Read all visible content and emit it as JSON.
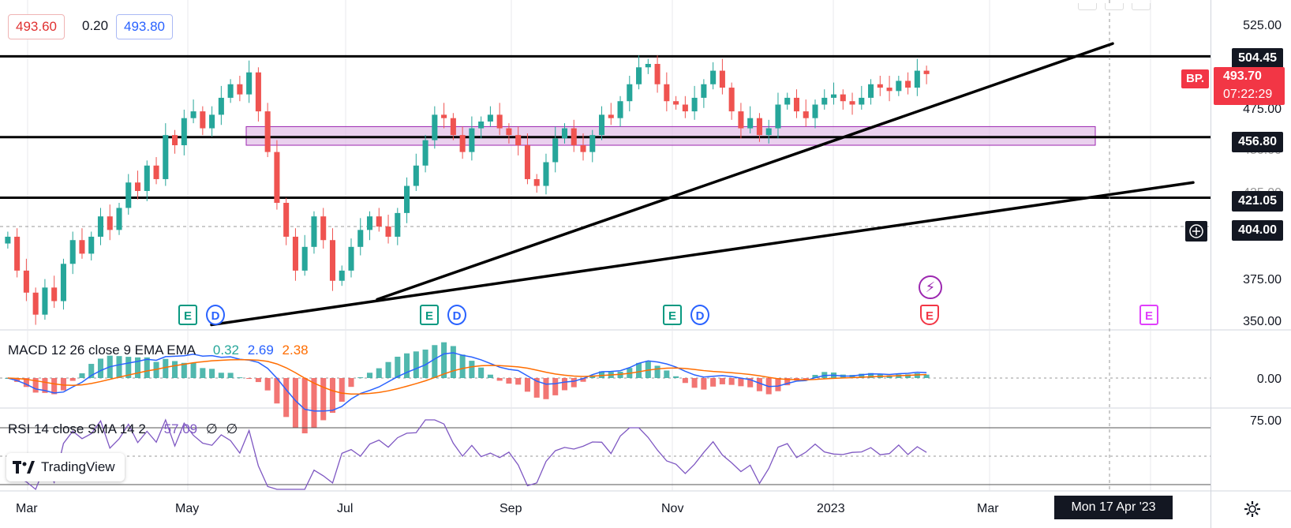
{
  "chart_data": {
    "type": "candlestick",
    "price_axis": {
      "ticks": [
        "525.00",
        "475.00",
        "450.00",
        "425.00",
        "375.00",
        "350.00"
      ],
      "ylim": [
        343,
        534
      ]
    },
    "x_axis": {
      "labels": [
        "Mar",
        "May",
        "Jul",
        "Sep",
        "Nov",
        "2023",
        "Mar"
      ]
    },
    "horizontal_levels": [
      {
        "label": "504.45",
        "value": 504.45
      },
      {
        "label": "456.80",
        "value": 456.8
      },
      {
        "label": "421.05",
        "value": 421.05
      }
    ],
    "crosshair_price": {
      "label": "404.00",
      "value": 404.0
    },
    "resistance_zone": {
      "low": 452,
      "high": 463
    },
    "close_series": [
      398,
      378,
      365,
      352,
      368,
      360,
      382,
      396,
      388,
      398,
      410,
      402,
      415,
      430,
      425,
      440,
      432,
      458,
      452,
      468,
      472,
      462,
      470,
      480,
      488,
      482,
      495,
      472,
      448,
      418,
      398,
      378,
      392,
      410,
      396,
      372,
      378,
      392,
      402,
      410,
      404,
      398,
      412,
      428,
      440,
      455,
      470,
      468,
      458,
      448,
      462,
      466,
      470,
      462,
      458,
      452,
      432,
      428,
      442,
      456,
      462,
      452,
      448,
      458,
      470,
      468,
      478,
      488,
      498,
      500,
      488,
      478,
      476,
      472,
      480,
      488,
      496,
      486,
      472,
      462,
      468,
      458,
      462,
      476,
      480,
      472,
      468,
      476,
      480,
      482,
      478,
      476,
      480,
      488,
      486,
      484,
      490,
      486,
      496,
      494
    ],
    "trendlines": [
      "rising trendline from Jul low",
      "rising trendline from May low"
    ]
  },
  "quotes": {
    "bid": "493.60",
    "spread": "0.20",
    "ask": "493.80"
  },
  "current_price": {
    "symbol": "BP.",
    "price": "493.70",
    "countdown": "07:22:29"
  },
  "macd": {
    "title": "MACD 12 26 close 9 EMA EMA",
    "hist": "0.32",
    "macd": "2.69",
    "signal": "2.38",
    "axis_label": "0.00",
    "colors": {
      "macd": "#2962ff",
      "signal": "#ff6d00",
      "hist_pos": "#26a69a",
      "hist_neg": "#ef5350"
    }
  },
  "rsi": {
    "title": "RSI 14 close SMA 14 2",
    "value": "57.09",
    "extra1": "∅",
    "extra2": "∅",
    "axis_label": "75.00",
    "color": "#7e57c2"
  },
  "events": {
    "earnings": "E",
    "dividend": "D"
  },
  "logo": {
    "text": "TradingView"
  },
  "crosshair_date": "Mon 17 Apr '23",
  "colors": {
    "up": "#26a69a",
    "down": "#ef5350",
    "zone": "#e1bee7",
    "zone_border": "#9c27b0",
    "current": "#f23645"
  }
}
